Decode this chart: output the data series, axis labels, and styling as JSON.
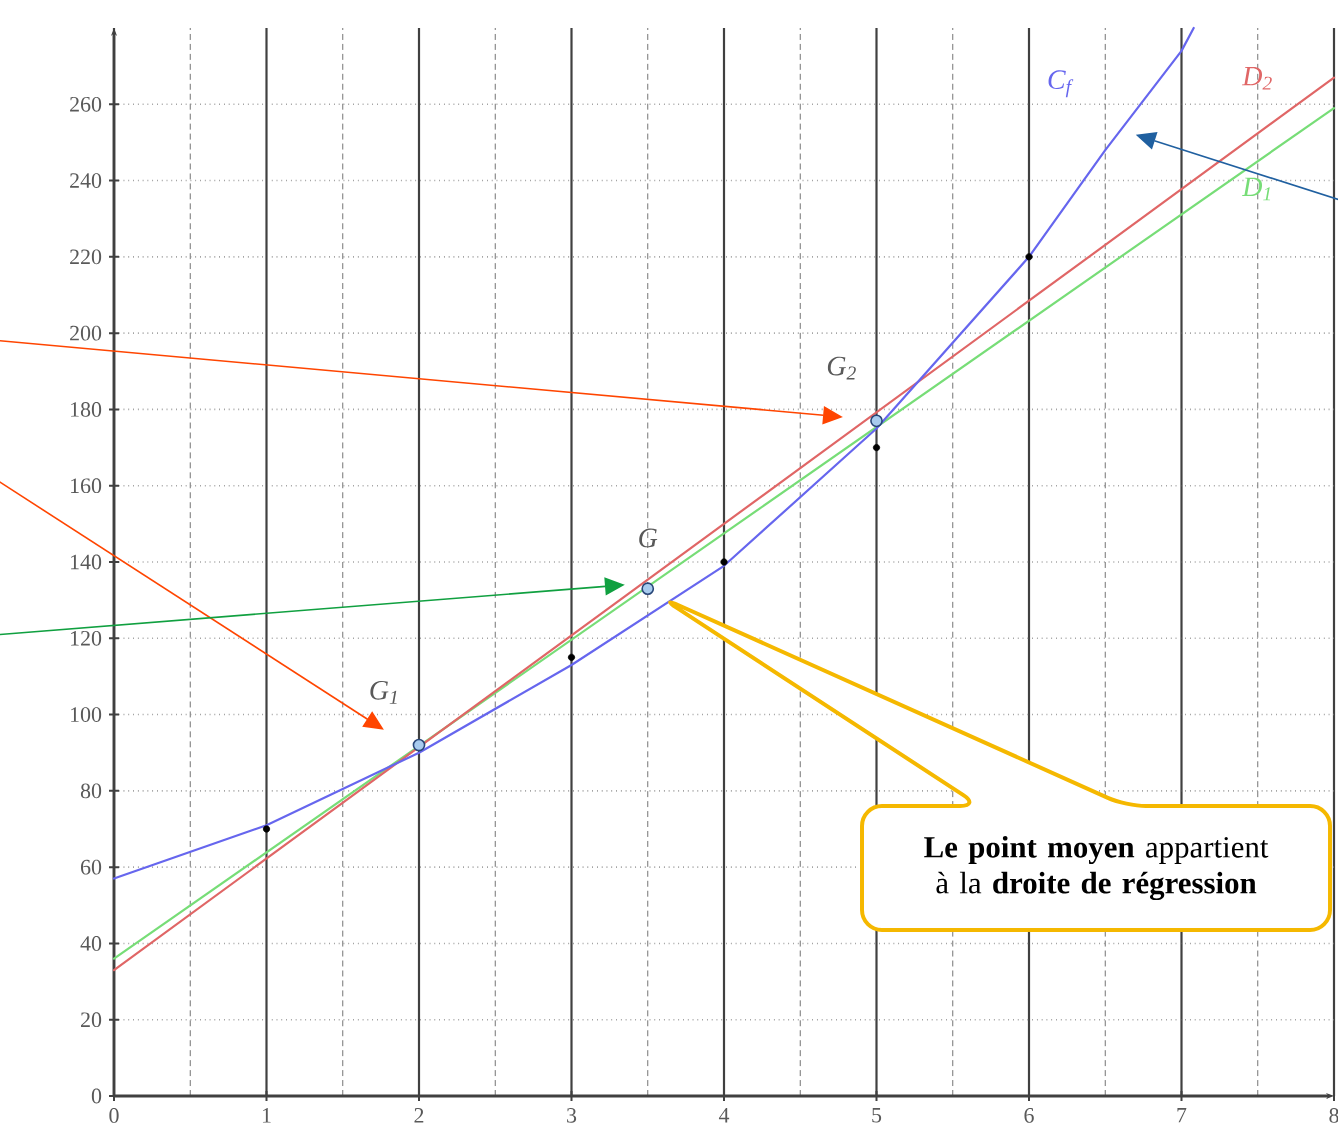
{
  "chart_data": {
    "type": "scatter",
    "xlim": [
      0,
      8
    ],
    "ylim": [
      0,
      280
    ],
    "xticks": [
      0,
      1,
      2,
      3,
      4,
      5,
      6,
      7,
      8
    ],
    "yticks": [
      0,
      20,
      40,
      60,
      80,
      100,
      120,
      140,
      160,
      180,
      200,
      220,
      240,
      260
    ],
    "grid": true,
    "series": [
      {
        "marker": "circle",
        "color": "#000000",
        "x": [
          1,
          3,
          4,
          5,
          6
        ],
        "values": [
          70,
          115,
          140,
          170,
          220
        ]
      },
      {
        "marker": "circle",
        "color": "#a8cbee",
        "x": [
          2,
          3.5,
          5
        ],
        "values": [
          92,
          133,
          177
        ]
      },
      {
        "type": "line",
        "marker": "none",
        "color": "#77dd77",
        "x": [
          0,
          8
        ],
        "values": [
          36,
          259
        ]
      },
      {
        "type": "line",
        "marker": "none",
        "color": "#e06666",
        "x": [
          0,
          8
        ],
        "values": [
          33,
          267
        ]
      },
      {
        "type": "line",
        "marker": "none",
        "color": "#6666ee",
        "x": [
          0,
          1,
          2,
          3,
          4,
          5,
          6,
          6.5,
          7,
          7.08
        ],
        "values": [
          57,
          71,
          90,
          113,
          139,
          175,
          220,
          248,
          274,
          280
        ]
      }
    ],
    "annotations": [
      {
        "text": "G$_{1}$",
        "x": 2,
        "y": 92
      },
      {
        "text": "G",
        "x": 3.5,
        "y": 133
      },
      {
        "text": "G$_{2}$",
        "x": 5,
        "y": 177
      },
      {
        "text": "C$_{f}$",
        "x": 6.5,
        "y": 248
      },
      "D$_{2}$",
      "D$_{1}$",
      "**Le point moyen** appartient à la **droite de régression**"
    ]
  }
}
